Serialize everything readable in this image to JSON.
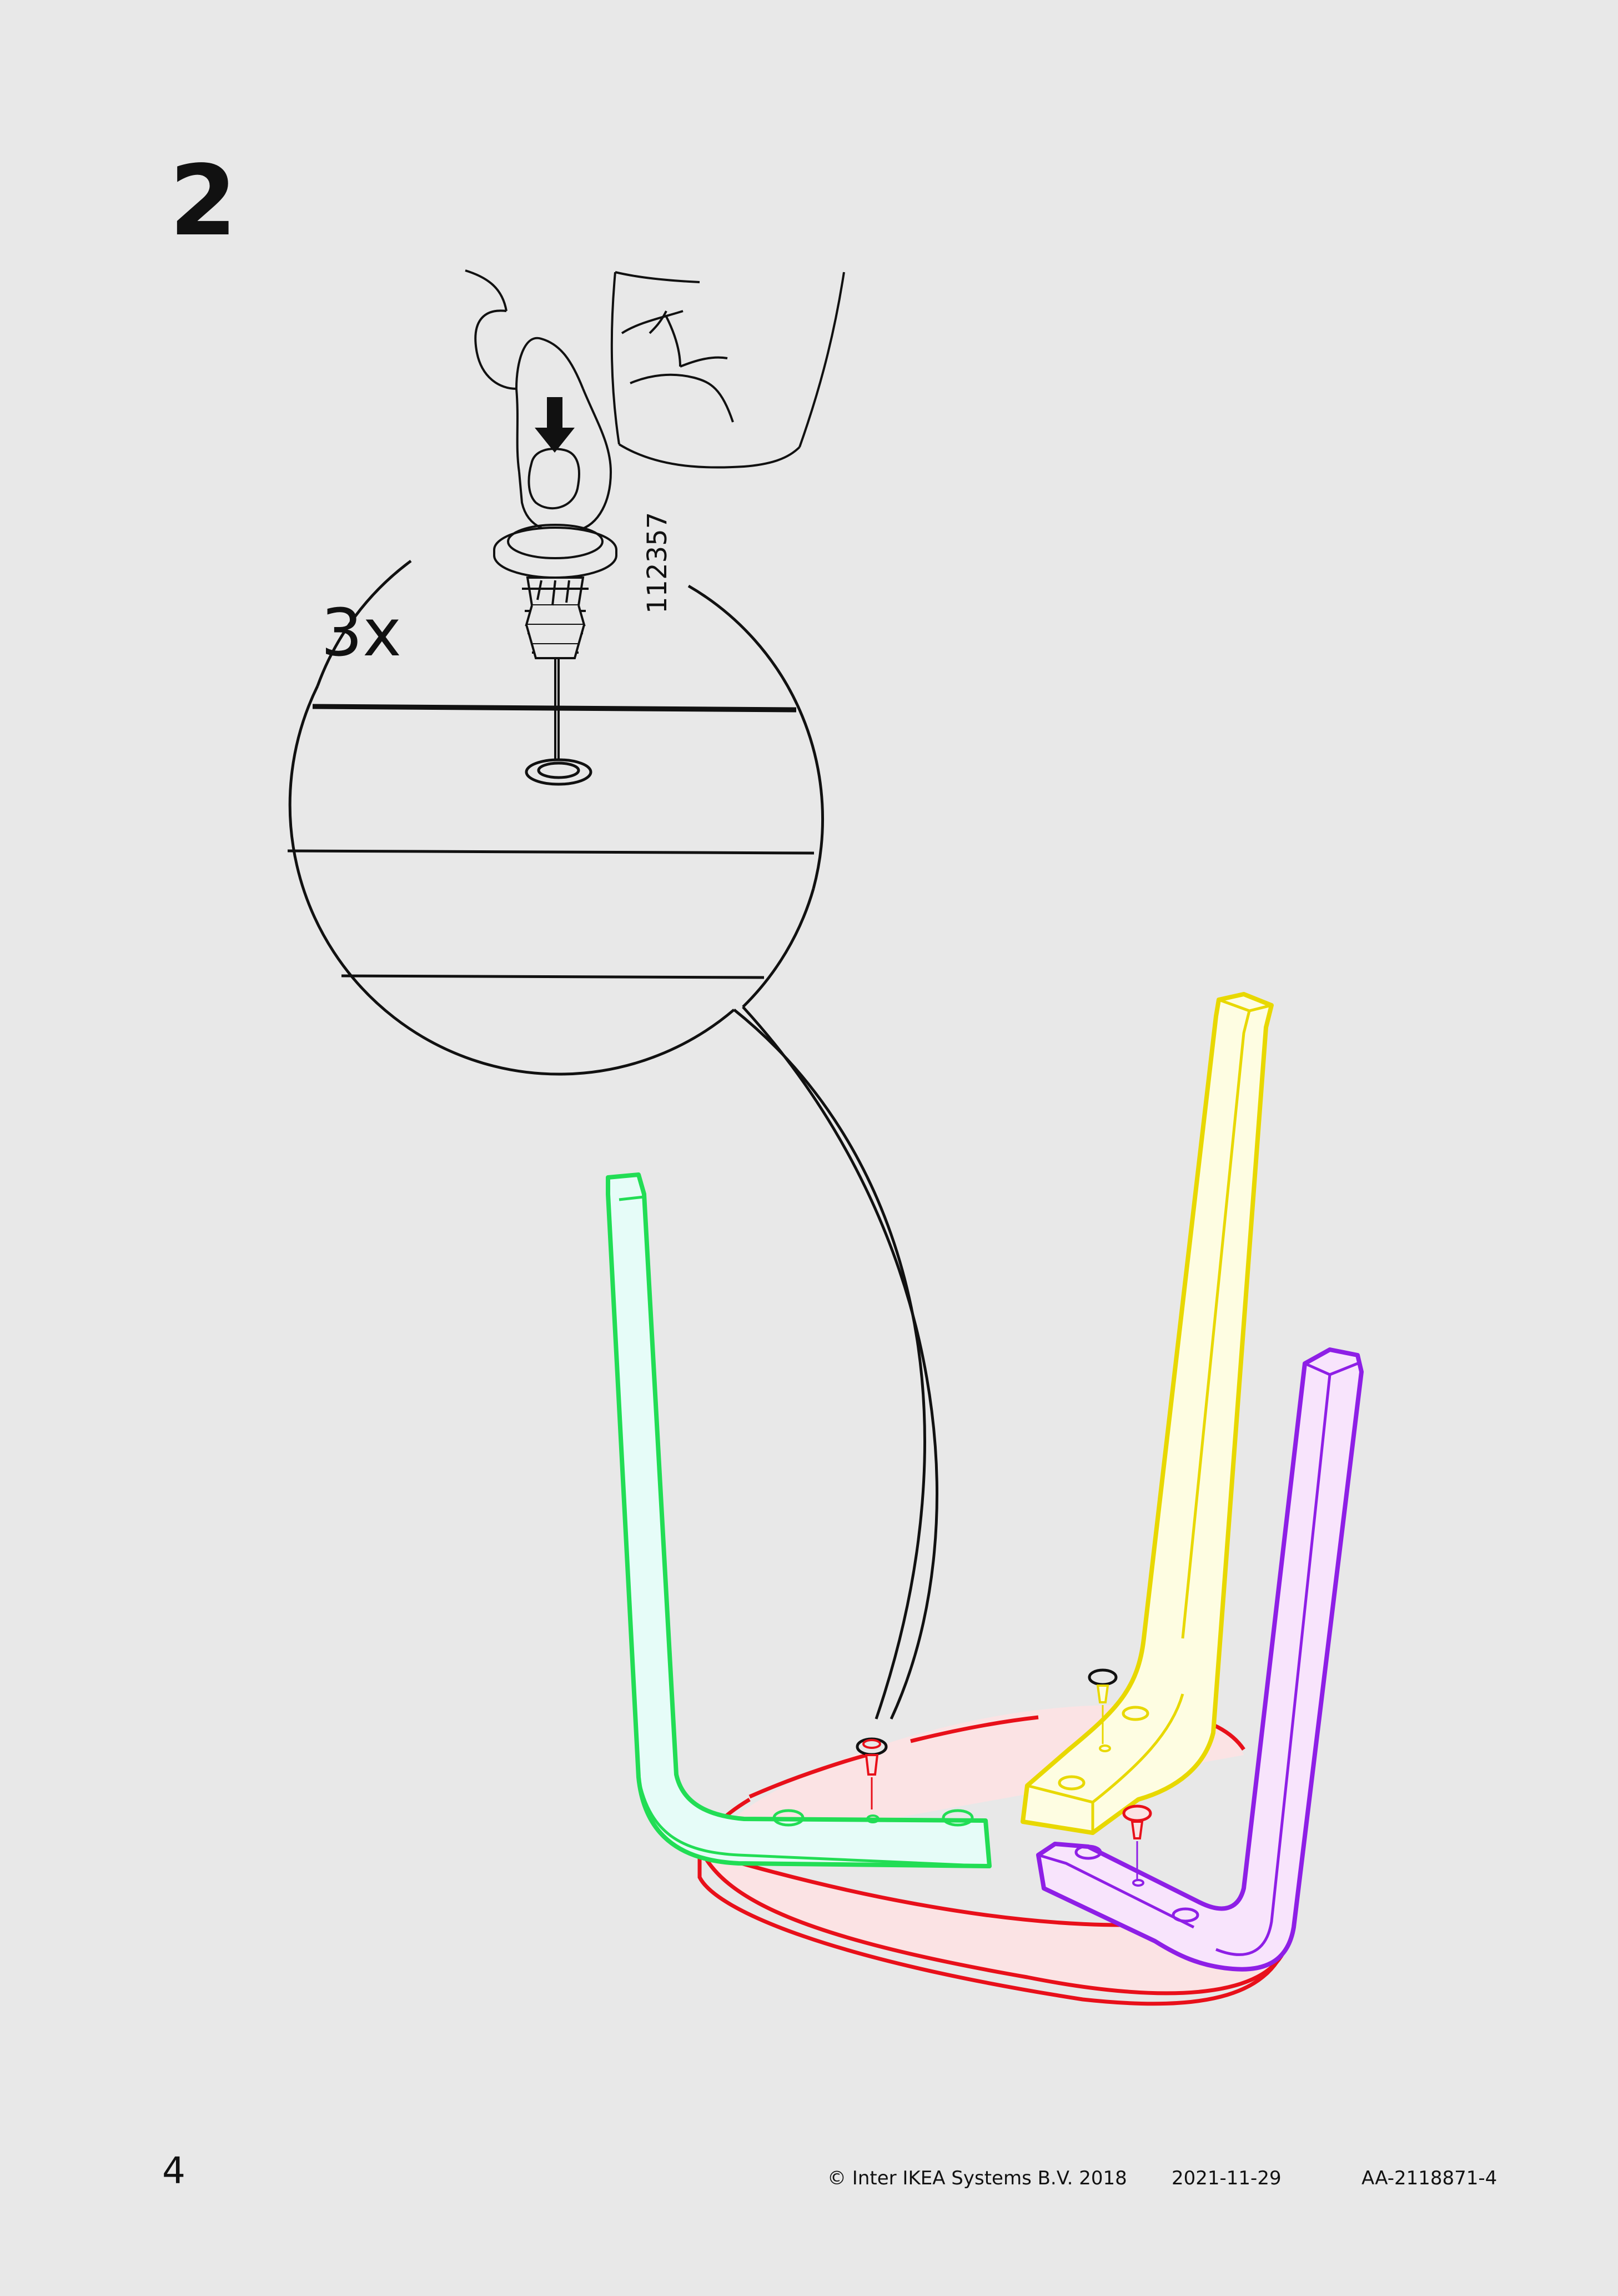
{
  "step": {
    "number": "2"
  },
  "detail": {
    "quantity": "3x",
    "part_number": "112357"
  },
  "footer": {
    "page_number": "4",
    "copyright": "© Inter IKEA Systems B.V. 2018",
    "date": "2021-11-29",
    "document_id": "AA-2118871-4"
  },
  "icons": [
    "hand-icon",
    "press-down-arrow-icon",
    "dowel-icon",
    "magnifier-callout",
    "stool-seat",
    "stool-leg"
  ],
  "colors": {
    "background": "#e8e8e8",
    "line": "#111111",
    "seat_outline": "#e8101a",
    "seat_fill": "#fbe3e4",
    "leg_green": "#22dd55",
    "leg_green_fill": "#e6fcf8",
    "leg_yellow": "#e8d800",
    "leg_yellow_fill": "#fefde2",
    "leg_purple": "#8e1fe6",
    "leg_purple_fill": "#f8e4fc",
    "dowel_red": "#e8101a"
  }
}
